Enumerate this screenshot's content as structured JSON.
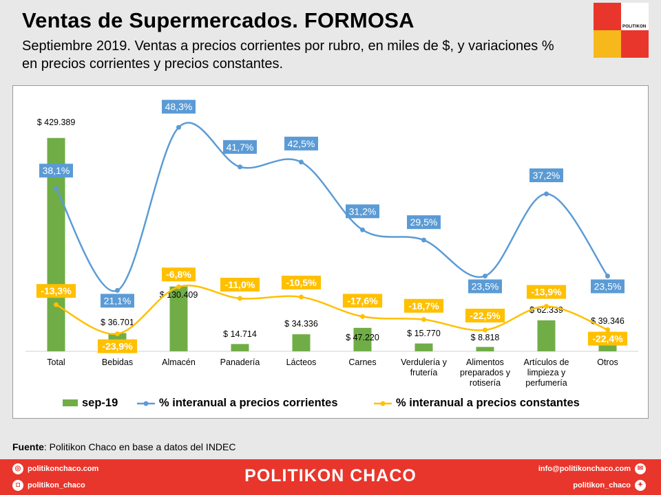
{
  "header": {
    "title": "Ventas de Supermercados.  FORMOSA",
    "subtitle": "Septiembre 2019. Ventas a precios corrientes por rubro, en miles de $, y variaciones % en precios corrientes y precios constantes."
  },
  "logo": {
    "text": "POLITIKON"
  },
  "source": {
    "label": "Fuente",
    "text": ": Politikon Chaco en base a datos del INDEC"
  },
  "footer": {
    "brand": "POLITIKON CHACO",
    "web": "politikonchaco.com",
    "instagram": "politikon_chaco",
    "email": "info@politikonchaco.com",
    "twitter": "politikon_chaco"
  },
  "colors": {
    "bar": "#70ad47",
    "line_corrientes": "#5b9bd5",
    "line_constantes": "#ffc000",
    "brand_red": "#e8362c"
  },
  "chart_data": {
    "type": "bar",
    "categories": [
      [
        "Total"
      ],
      [
        "Bebidas"
      ],
      [
        "Almacén"
      ],
      [
        "Panadería"
      ],
      [
        "Lácteos"
      ],
      [
        "Carnes"
      ],
      [
        "Verdulería y",
        "frutería"
      ],
      [
        "Alimentos",
        "preparados y",
        "rotisería"
      ],
      [
        "Artículos de",
        "limpieza y",
        "perfumería"
      ],
      [
        "Otros"
      ]
    ],
    "bar_series": {
      "name": "sep-19",
      "values": [
        429389,
        36701,
        130409,
        14714,
        34336,
        47220,
        15770,
        8818,
        62339,
        39346
      ],
      "labels": [
        "$ 429.389",
        "$ 36.701",
        "$ 130.409",
        "$ 14.714",
        "$ 34.336",
        "$ 47.220",
        "$ 15.770",
        "$ 8.818",
        "$ 62.339",
        "$ 39.346"
      ]
    },
    "line_series": [
      {
        "name": "% interanual a precios corrientes",
        "values": [
          38.1,
          21.1,
          48.3,
          41.7,
          42.5,
          31.2,
          29.5,
          23.5,
          37.2,
          23.5
        ],
        "labels": [
          "38,1%",
          "21,1%",
          "48,3%",
          "41,7%",
          "42,5%",
          "31,2%",
          "29,5%",
          "23,5%",
          "37,2%",
          "23,5%"
        ]
      },
      {
        "name": "% interanual a precios constantes",
        "values": [
          -13.3,
          -23.9,
          -6.8,
          -11.0,
          -10.5,
          -17.6,
          -18.7,
          -22.5,
          -13.9,
          -22.4
        ],
        "labels": [
          "-13,3%",
          "-23,9%",
          "-6,8%",
          "-11,0%",
          "-10,5%",
          "-17,6%",
          "-18,7%",
          "-22,5%",
          "-13,9%",
          "-22,4%"
        ]
      }
    ],
    "legend_position": "bottom",
    "grid": false
  }
}
